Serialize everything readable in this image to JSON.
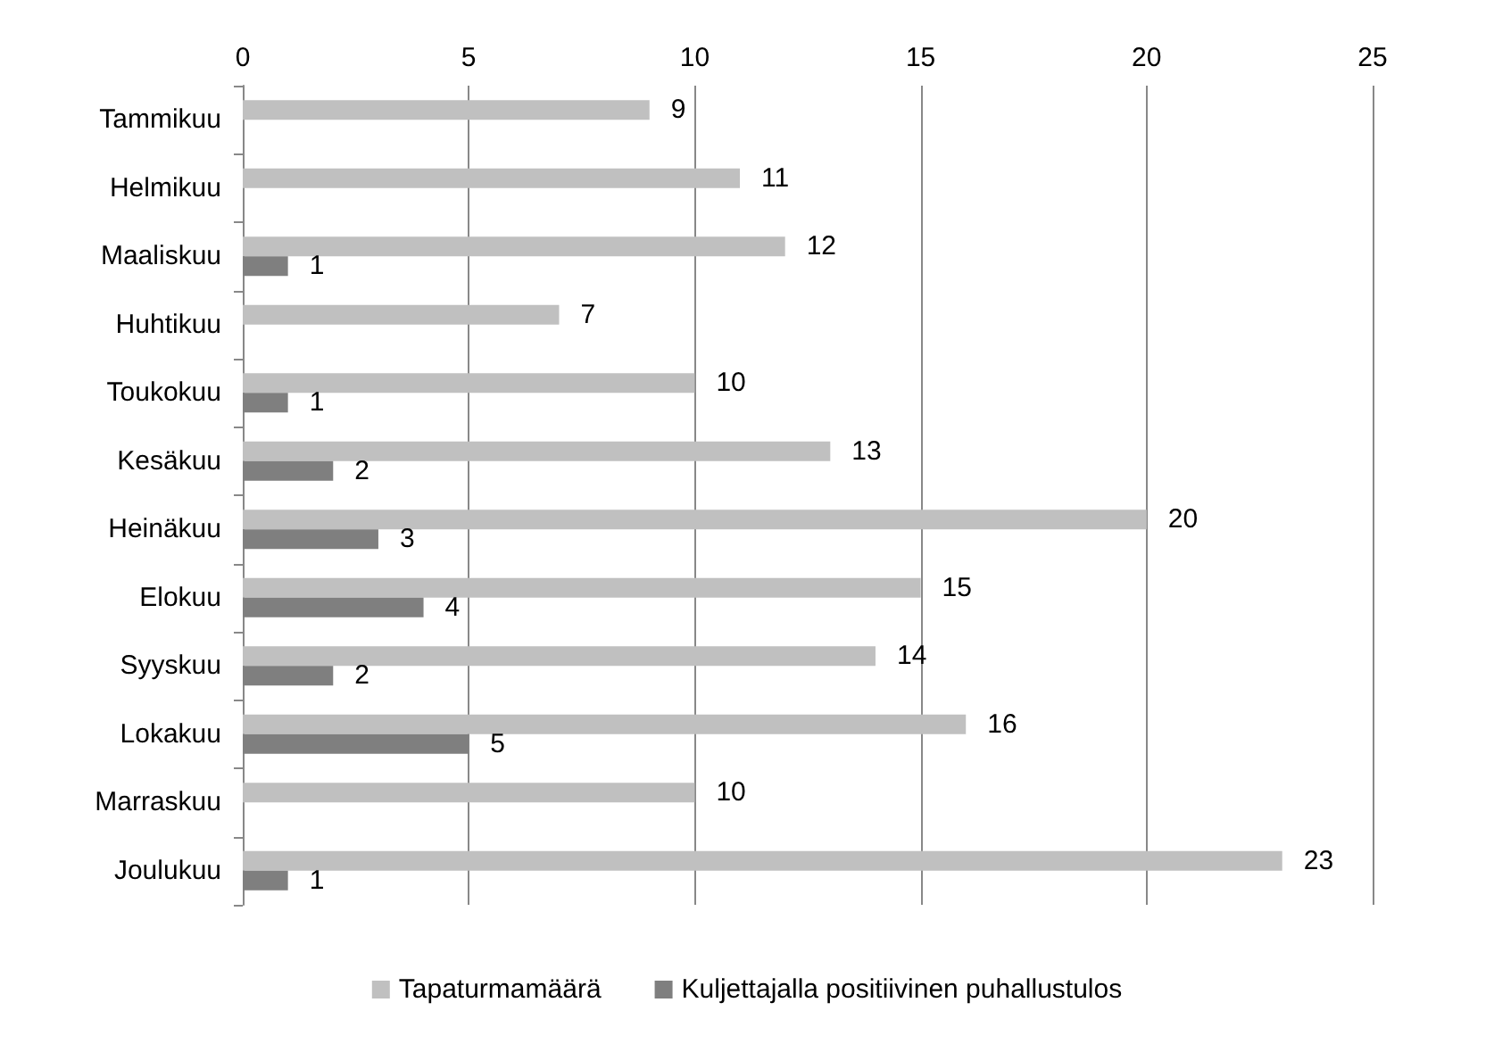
{
  "chart_data": {
    "type": "bar",
    "orientation": "horizontal",
    "categories": [
      "Tammikuu",
      "Helmikuu",
      "Maaliskuu",
      "Huhtikuu",
      "Toukokuu",
      "Kesäkuu",
      "Heinäkuu",
      "Elokuu",
      "Syyskuu",
      "Lokakuu",
      "Marraskuu",
      "Joulukuu"
    ],
    "series": [
      {
        "name": "Tapaturmamäärä",
        "color": "#c0c0c0",
        "values": [
          9,
          11,
          12,
          7,
          10,
          13,
          20,
          15,
          14,
          16,
          10,
          23
        ]
      },
      {
        "name": "Kuljettajalla positiivinen puhallustulos",
        "color": "#7f7f7f",
        "values": [
          null,
          null,
          1,
          null,
          1,
          2,
          3,
          4,
          2,
          5,
          null,
          1
        ]
      }
    ],
    "xlim": [
      0,
      25
    ],
    "xticks": [
      0,
      5,
      10,
      15,
      20,
      25
    ],
    "grid": "x",
    "data_labels": true,
    "legend": "bottom"
  }
}
